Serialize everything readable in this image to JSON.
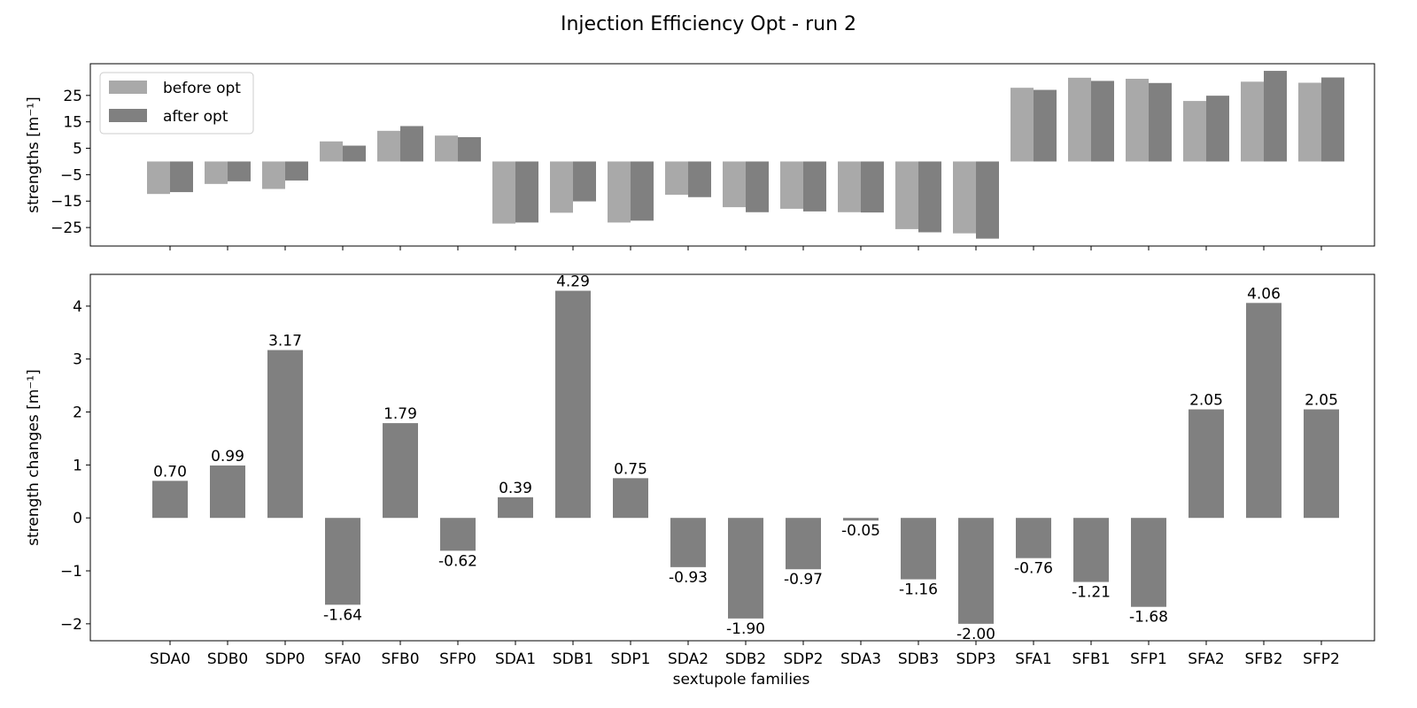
{
  "figure": {
    "title": "Injection Efficiency Opt - run 2",
    "colors": {
      "before": "#a9a9a9",
      "after": "#808080",
      "axes": "#000000"
    }
  },
  "chart_data": [
    {
      "type": "bar",
      "panel": "top",
      "categories": [
        "SDA0",
        "SDB0",
        "SDP0",
        "SFA0",
        "SFB0",
        "SFP0",
        "SDA1",
        "SDB1",
        "SDP1",
        "SDA2",
        "SDB2",
        "SDP2",
        "SDA3",
        "SDB3",
        "SDP3",
        "SFA1",
        "SFB1",
        "SFP1",
        "SFA2",
        "SFB2",
        "SFP2"
      ],
      "series": [
        {
          "name": "before opt",
          "color": "#a9a9a9",
          "values": [
            -12.3,
            -8.5,
            -10.4,
            7.6,
            11.6,
            9.8,
            -23.5,
            -19.4,
            -23.1,
            -12.6,
            -17.3,
            -17.9,
            -19.2,
            -25.6,
            -27.2,
            27.9,
            31.7,
            31.3,
            22.9,
            30.2,
            29.8
          ]
        },
        {
          "name": "after opt",
          "color": "#808080",
          "values": [
            -11.6,
            -7.5,
            -7.2,
            6.0,
            13.4,
            9.2,
            -23.1,
            -15.1,
            -22.4,
            -13.5,
            -19.2,
            -18.9,
            -19.3,
            -26.8,
            -29.2,
            27.1,
            30.5,
            29.7,
            24.9,
            34.3,
            31.8
          ]
        }
      ],
      "ylabel": "strengths [m⁻¹]",
      "yticks": [
        25,
        15,
        5,
        -5,
        -15,
        -25
      ],
      "ylim": [
        -32,
        37
      ],
      "legend_position": "upper-left"
    },
    {
      "type": "bar",
      "panel": "bottom",
      "categories": [
        "SDA0",
        "SDB0",
        "SDP0",
        "SFA0",
        "SFB0",
        "SFP0",
        "SDA1",
        "SDB1",
        "SDP1",
        "SDA2",
        "SDB2",
        "SDP2",
        "SDA3",
        "SDB3",
        "SDP3",
        "SFA1",
        "SFB1",
        "SFP1",
        "SFA2",
        "SFB2",
        "SFP2"
      ],
      "values": [
        0.7,
        0.99,
        3.17,
        -1.64,
        1.79,
        -0.62,
        0.39,
        4.29,
        0.75,
        -0.93,
        -1.9,
        -0.97,
        -0.05,
        -1.16,
        -2.0,
        -0.76,
        -1.21,
        -1.68,
        2.05,
        4.06,
        2.05
      ],
      "labels": [
        "0.70",
        "0.99",
        "3.17",
        "-1.64",
        "1.79",
        "-0.62",
        "0.39",
        "4.29",
        "0.75",
        "-0.93",
        "-1.90",
        "-0.97",
        "-0.05",
        "-1.16",
        "-2.00",
        "-0.76",
        "-1.21",
        "-1.68",
        "2.05",
        "4.06",
        "2.05"
      ],
      "color": "#808080",
      "xlabel": "sextupole families",
      "ylabel": "strength changes [m⁻¹]",
      "yticks": [
        4,
        3,
        2,
        1,
        0,
        -1,
        -2
      ],
      "ytick_labels": [
        "4",
        "3",
        "2",
        "1",
        "0",
        "−1",
        "−2"
      ],
      "ylim": [
        -2.32,
        4.6
      ]
    }
  ]
}
